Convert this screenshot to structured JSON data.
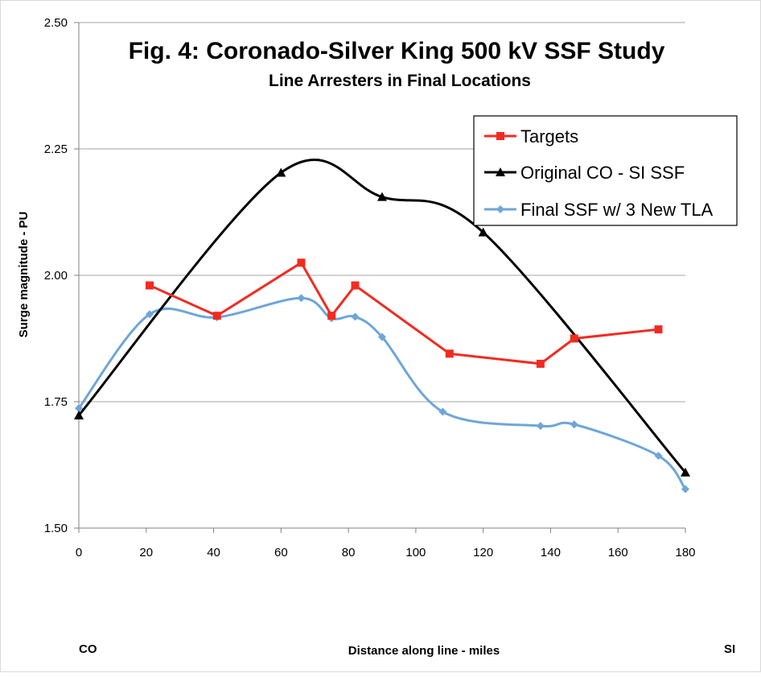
{
  "chart_data": {
    "type": "line",
    "title": "Fig. 4: Coronado-Silver King 500 kV SSF Study",
    "subtitle": "Line Arresters in Final Locations",
    "xlabel": "Distance along line - miles",
    "ylabel": "Surge magnitude - PU",
    "x_endpoint_labels": {
      "left": "CO",
      "right": "SI"
    },
    "xlim": [
      0,
      180
    ],
    "ylim": [
      1.5,
      2.5
    ],
    "x_ticks": [
      0,
      20,
      40,
      60,
      80,
      100,
      120,
      140,
      160,
      180
    ],
    "y_ticks": [
      1.5,
      1.75,
      2.0,
      2.25,
      2.5
    ],
    "y_tick_labels": [
      "1.50",
      "1.75",
      "2.00",
      "2.25",
      "2.50"
    ],
    "grid": "horizontal",
    "legend_position": "top-right",
    "series": [
      {
        "name": "Targets",
        "color": "#f22b21",
        "marker": "square",
        "smooth": false,
        "x": [
          21,
          41,
          66,
          75,
          82,
          110,
          137,
          147,
          172
        ],
        "y": [
          1.98,
          1.92,
          2.025,
          1.92,
          1.98,
          1.845,
          1.825,
          1.875,
          1.893
        ]
      },
      {
        "name": "Original CO - SI SSF",
        "color": "#000000",
        "marker": "triangle",
        "smooth": true,
        "x": [
          0,
          60,
          90,
          120,
          180
        ],
        "y": [
          1.723,
          2.203,
          2.155,
          2.085,
          1.61
        ]
      },
      {
        "name": "Final SSF w/ 3 New TLA",
        "color": "#6ea6d8",
        "marker": "diamond",
        "smooth": true,
        "x": [
          0,
          21,
          41,
          66,
          75,
          82,
          90,
          108,
          137,
          147,
          172,
          180
        ],
        "y": [
          1.737,
          1.923,
          1.917,
          1.955,
          1.915,
          1.918,
          1.878,
          1.73,
          1.702,
          1.705,
          1.643,
          1.577
        ]
      }
    ]
  }
}
